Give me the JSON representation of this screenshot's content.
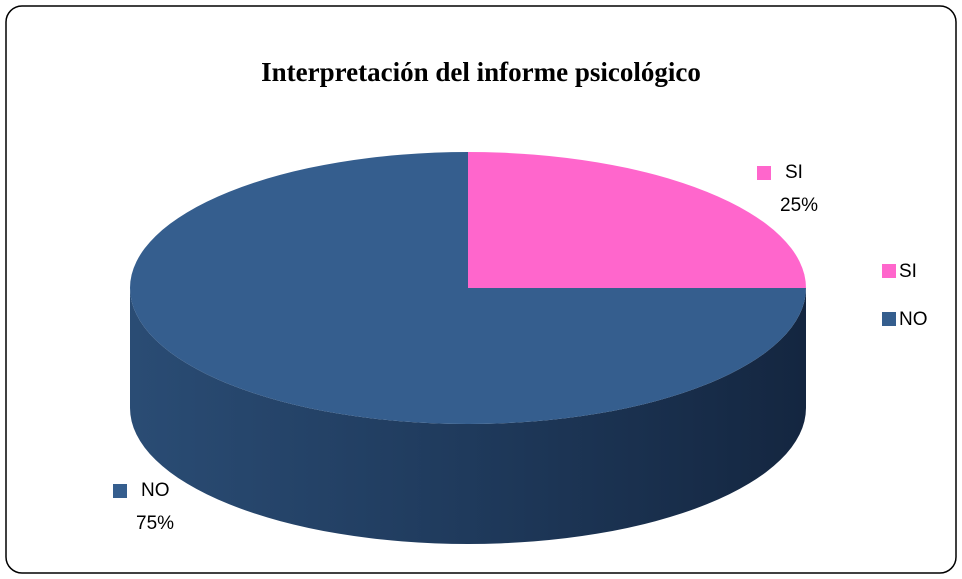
{
  "chart_data": {
    "type": "pie",
    "title": "Interpretación del informe psicológico",
    "categories": [
      "SI",
      "NO"
    ],
    "values": [
      25,
      75
    ],
    "value_labels": [
      "25%",
      "75%"
    ],
    "colors": [
      "#ff66cc",
      "#355e8e"
    ],
    "legend": "right"
  }
}
